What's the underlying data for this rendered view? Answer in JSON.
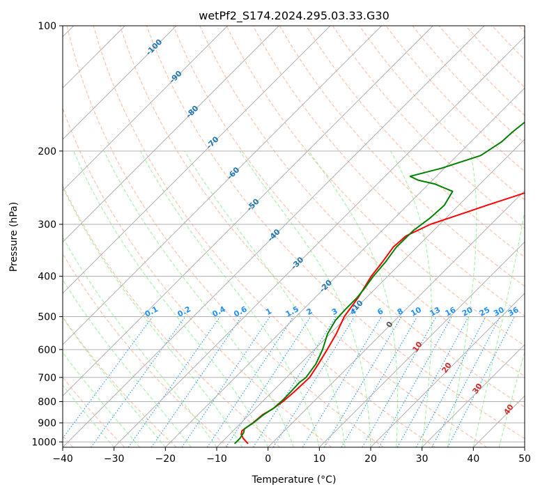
{
  "chart_data": {
    "type": "line",
    "title": "wetPf2_S174.2024.295.03.33.G30",
    "xlabel": "Temperature (°C)",
    "ylabel": "Pressure (hPa)",
    "xlim": [
      -40,
      50
    ],
    "ylim": [
      1030,
      100
    ],
    "y_scale": "log",
    "grid": true,
    "x_ticks": [
      -40,
      -30,
      -20,
      -10,
      0,
      10,
      20,
      30,
      40,
      50
    ],
    "x_tick_labels": [
      "−40",
      "−30",
      "−20",
      "−10",
      "0",
      "10",
      "20",
      "30",
      "40",
      "50"
    ],
    "y_ticks": [
      1000,
      900,
      800,
      700,
      600,
      500,
      400,
      300,
      200,
      100
    ],
    "y_tick_labels": [
      "1000",
      "900",
      "800",
      "700",
      "600",
      "500",
      "400",
      "300",
      "200",
      "100"
    ],
    "series": [
      {
        "color": "#ff0000",
        "points": [
          [
            1010,
            -4.6
          ],
          [
            980,
            -6.6
          ],
          [
            960,
            -7.7
          ],
          [
            940,
            -8.3
          ],
          [
            900,
            -7.7
          ],
          [
            860,
            -7.4
          ],
          [
            830,
            -6.5
          ],
          [
            800,
            -6.0
          ],
          [
            760,
            -5.7
          ],
          [
            700,
            -5.5
          ],
          [
            650,
            -6.4
          ],
          [
            600,
            -7.5
          ],
          [
            550,
            -8.8
          ],
          [
            500,
            -10.6
          ],
          [
            450,
            -11.6
          ],
          [
            400,
            -13.2
          ],
          [
            370,
            -13.8
          ],
          [
            340,
            -14.6
          ],
          [
            320,
            -14.3
          ],
          [
            300,
            -11.8
          ],
          [
            285,
            -8.2
          ],
          [
            270,
            -4.5
          ],
          [
            250,
            1.1
          ],
          [
            225,
            5.8
          ],
          [
            200,
            8.1
          ],
          [
            175,
            12.5
          ],
          [
            150,
            17.3
          ],
          [
            125,
            22.0
          ],
          [
            110,
            25.8
          ],
          [
            100,
            28.8
          ]
        ]
      },
      {
        "color": "#008000",
        "points": [
          [
            1010,
            -7.2
          ],
          [
            980,
            -7.2
          ],
          [
            950,
            -7.6
          ],
          [
            930,
            -8.2
          ],
          [
            900,
            -7.6
          ],
          [
            860,
            -7.2
          ],
          [
            830,
            -6.5
          ],
          [
            790,
            -6.3
          ],
          [
            750,
            -6.4
          ],
          [
            720,
            -6.5
          ],
          [
            700,
            -6.2
          ],
          [
            650,
            -6.9
          ],
          [
            600,
            -8.4
          ],
          [
            550,
            -10.5
          ],
          [
            510,
            -11.6
          ],
          [
            480,
            -11.8
          ],
          [
            450,
            -11.8
          ],
          [
            430,
            -12.1
          ],
          [
            400,
            -12.8
          ],
          [
            370,
            -13.2
          ],
          [
            340,
            -14.0
          ],
          [
            310,
            -13.9
          ],
          [
            290,
            -13.1
          ],
          [
            270,
            -12.8
          ],
          [
            250,
            -13.9
          ],
          [
            240,
            -18.8
          ],
          [
            235,
            -22.8
          ],
          [
            230,
            -25.1
          ],
          [
            220,
            -20.6
          ],
          [
            205,
            -15.4
          ],
          [
            190,
            -14.0
          ],
          [
            180,
            -13.8
          ],
          [
            170,
            -13.3
          ],
          [
            165,
            -11.8
          ],
          [
            150,
            -8.0
          ],
          [
            135,
            -6.0
          ],
          [
            120,
            -3.6
          ],
          [
            110,
            -1.3
          ],
          [
            100,
            1.5
          ]
        ]
      }
    ],
    "mixing_ratio_labels": [
      "0.1",
      "0.2",
      "0.4",
      "0.6",
      "1",
      "1.5",
      "2",
      "3",
      "4",
      "6",
      "8",
      "10",
      "13",
      "16",
      "20",
      "25",
      "30",
      "36"
    ],
    "mixing_ratio_values": [
      0.1,
      0.2,
      0.4,
      0.6,
      1,
      1.5,
      2,
      3,
      4,
      6,
      8,
      10,
      13,
      16,
      20,
      25,
      30,
      36
    ],
    "dry_adiabat_labels": [
      "-100",
      "-90",
      "-80",
      "-70",
      "-60",
      "-50",
      "-40",
      "-30",
      "-20",
      "-10"
    ],
    "moist_adiabat_labels": [
      "0",
      "10",
      "20",
      "30",
      "40"
    ],
    "colors": {
      "temperature": "#ff0000",
      "dewpoint": "#008000",
      "dry_adiabat": "#ffa07a",
      "moist_adiabat": "#90ee90",
      "mixing_ratio": "#1e90ff",
      "grid": "#b0b0b0",
      "dry_label": "#1f77b4",
      "moist_label": "#d62728",
      "zero_label": "#555555"
    }
  }
}
